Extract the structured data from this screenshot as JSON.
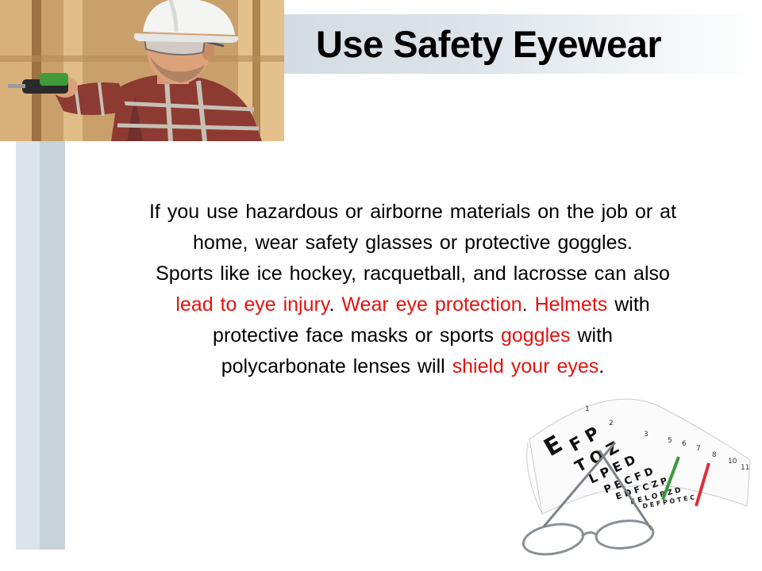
{
  "title": "Use Safety Eyewear",
  "paragraph1": {
    "line1": "If you use hazardous or airborne materials on the job or at",
    "line2": "home, wear safety glasses or protective goggles."
  },
  "paragraph2": {
    "line1": "Sports like ice hockey, racquetball, and lacrosse can also",
    "l2_red1": "lead to eye injury",
    "l2_p1": ". ",
    "l2_red2": "Wear eye protection",
    "l2_p2": ". ",
    "l2_red3": "Helmets",
    "l2_p3": " with",
    "l3_a": "protective face masks or sports ",
    "l3_red": "goggles",
    "l3_b": " with",
    "l4_a": "polycarbonate lenses will ",
    "l4_red": "shield your eyes",
    "l4_b": "."
  },
  "colors": {
    "accent_text": "#e3130f",
    "band": "#dde4e9",
    "sidebar_dark": "#c7d2d9"
  },
  "images": {
    "worker_photo": "worker-with-hardhat-safety-glasses-and-drill",
    "eye_chart_photo": "eye-chart-with-eyeglasses"
  }
}
